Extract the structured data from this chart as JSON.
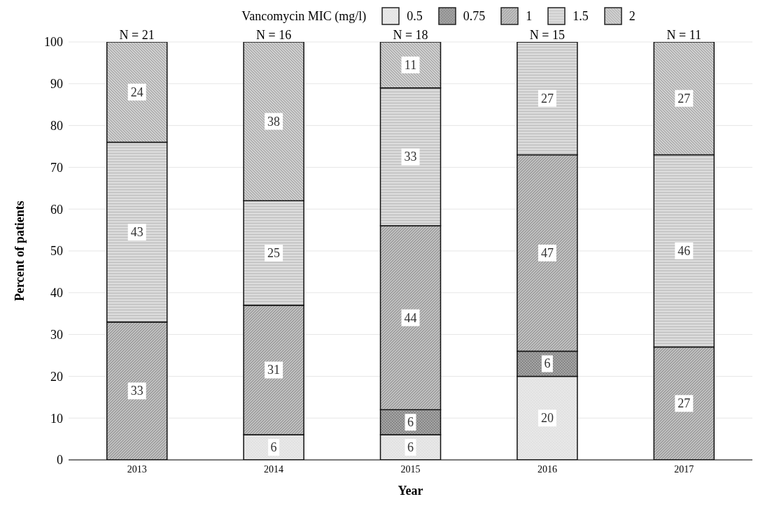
{
  "chart_data": {
    "type": "bar",
    "stacked": true,
    "xlabel": "Year",
    "ylabel": "Percent of patients",
    "legend_title": "Vancomycin MIC (mg/l)",
    "legend": "top",
    "grid": "y",
    "data_labels": true,
    "categories": [
      "2013",
      "2014",
      "2015",
      "2016",
      "2017"
    ],
    "ylim": [
      0,
      100
    ],
    "yticks": [
      0,
      10,
      20,
      30,
      40,
      50,
      60,
      70,
      80,
      90,
      100
    ],
    "series": [
      {
        "name": "0.5",
        "color": "#e8e8e8",
        "values": [
          null,
          6,
          6,
          20,
          null
        ]
      },
      {
        "name": "0.75",
        "color": "#a0a0a0",
        "values": [
          null,
          null,
          6,
          6,
          null
        ]
      },
      {
        "name": "1",
        "color": "#bebebe",
        "values": [
          33,
          31,
          44,
          47,
          27
        ]
      },
      {
        "name": "1.5",
        "color": "#dadada",
        "values": [
          43,
          25,
          33,
          27,
          46
        ]
      },
      {
        "name": "2",
        "color": "#cecece",
        "values": [
          24,
          38,
          11,
          null,
          27
        ]
      }
    ],
    "annotations": [
      "N = 21",
      "N = 16",
      "N = 18",
      "N = 15",
      "N = 11"
    ]
  }
}
